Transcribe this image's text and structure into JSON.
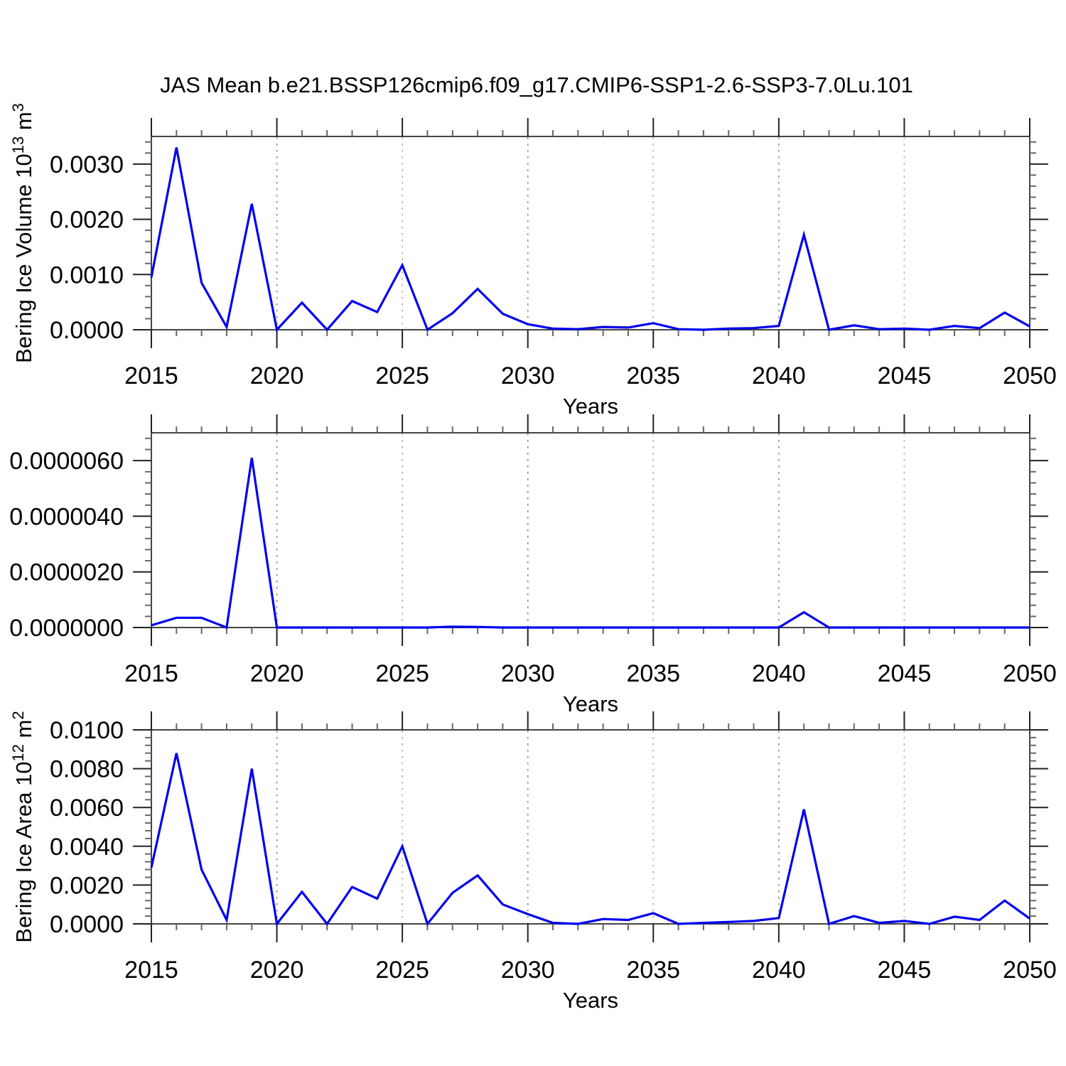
{
  "title": "JAS Mean b.e21.BSSP126cmip6.f09_g17.CMIP6-SSP1-2.6-SSP3-7.0Lu.101",
  "x_axis": {
    "label": "Years",
    "tick_labels": [
      "2015",
      "2020",
      "2025",
      "2030",
      "2035",
      "2040",
      "2045",
      "2050"
    ],
    "range": [
      2015,
      2050
    ],
    "major_step": 5,
    "minor_step": 1,
    "gridline_years": [
      2020,
      2025,
      2030,
      2035,
      2040,
      2045
    ]
  },
  "colors": {
    "series_line": "#0000f0",
    "axis_box": "#444444",
    "major_tick": "#222222",
    "minor_tick": "#666666",
    "grid_dark": "#909090",
    "grid_light": "#b4b4b4",
    "text": "#000000",
    "background": "#ffffff"
  },
  "chart_data": [
    {
      "type": "line",
      "name": "bering-ice-volume",
      "ylabel": "Bering Ice Volume 10^13 m^3",
      "ylabel_parts": [
        {
          "t": "Bering Ice Volume 10"
        },
        {
          "t": "13",
          "sup": true
        },
        {
          "t": " m"
        },
        {
          "t": "3",
          "sup": true
        }
      ],
      "xlabel": "Years",
      "ylim": [
        0,
        0.0035
      ],
      "yminor_step": 0.0002,
      "grid": "vertical-dashed",
      "legend": "none",
      "yticks": [
        {
          "v": 0.0,
          "label": "0.0000"
        },
        {
          "v": 0.001,
          "label": "0.0010"
        },
        {
          "v": 0.002,
          "label": "0.0020"
        },
        {
          "v": 0.003,
          "label": "0.0030"
        }
      ],
      "x": [
        2015,
        2016,
        2017,
        2018,
        2019,
        2020,
        2021,
        2022,
        2023,
        2024,
        2025,
        2026,
        2027,
        2028,
        2029,
        2030,
        2031,
        2032,
        2033,
        2034,
        2035,
        2036,
        2037,
        2038,
        2039,
        2040,
        2041,
        2042,
        2043,
        2044,
        2045,
        2046,
        2047,
        2048,
        2049,
        2050
      ],
      "values": [
        0.00095,
        0.0033,
        0.00085,
        5e-05,
        0.00228,
        0.0,
        0.00049,
        0.0,
        0.00052,
        0.00032,
        0.00117,
        0.0,
        0.0003,
        0.00074,
        0.00029,
        0.0001,
        2e-05,
        1e-05,
        5e-05,
        4e-05,
        0.00012,
        1e-05,
        0.0,
        2e-05,
        3e-05,
        7e-05,
        0.00172,
        0.0,
        8e-05,
        1e-05,
        2e-05,
        0.0,
        7e-05,
        3e-05,
        0.00031,
        6e-05
      ]
    },
    {
      "type": "line",
      "name": "middle-series",
      "ylabel": "",
      "ylabel_parts": [],
      "xlabel": "Years",
      "ylim": [
        0,
        7e-06
      ],
      "yminor_step": 4e-07,
      "grid": "vertical-dashed",
      "legend": "none",
      "yticks": [
        {
          "v": 0.0,
          "label": "0.0000000"
        },
        {
          "v": 2e-06,
          "label": "0.0000020"
        },
        {
          "v": 4e-06,
          "label": "0.0000040"
        },
        {
          "v": 6e-06,
          "label": "0.0000060"
        }
      ],
      "x": [
        2015,
        2016,
        2017,
        2018,
        2019,
        2020,
        2021,
        2022,
        2023,
        2024,
        2025,
        2026,
        2027,
        2028,
        2029,
        2030,
        2031,
        2032,
        2033,
        2034,
        2035,
        2036,
        2037,
        2038,
        2039,
        2040,
        2041,
        2042,
        2043,
        2044,
        2045,
        2046,
        2047,
        2048,
        2049,
        2050
      ],
      "values": [
        8e-08,
        3.5e-07,
        3.5e-07,
        0.0,
        6.1e-06,
        0.0,
        0.0,
        0.0,
        0.0,
        0.0,
        0.0,
        0.0,
        3e-08,
        2e-08,
        0.0,
        0.0,
        0.0,
        0.0,
        0.0,
        0.0,
        0.0,
        0.0,
        0.0,
        0.0,
        0.0,
        0.0,
        5.5e-07,
        0.0,
        0.0,
        0.0,
        0.0,
        0.0,
        0.0,
        0.0,
        0.0,
        0.0
      ]
    },
    {
      "type": "line",
      "name": "bering-ice-area",
      "ylabel": "Bering Ice Area 10^12 m^2",
      "ylabel_parts": [
        {
          "t": "Bering Ice Area 10"
        },
        {
          "t": "12",
          "sup": true
        },
        {
          "t": " m"
        },
        {
          "t": "2",
          "sup": true
        }
      ],
      "xlabel": "Years",
      "ylim": [
        0,
        0.01
      ],
      "yminor_step": 0.0004,
      "grid": "vertical-dashed",
      "legend": "none",
      "yticks": [
        {
          "v": 0.0,
          "label": "0.0000"
        },
        {
          "v": 0.002,
          "label": "0.0020"
        },
        {
          "v": 0.004,
          "label": "0.0040"
        },
        {
          "v": 0.006,
          "label": "0.0060"
        },
        {
          "v": 0.008,
          "label": "0.0080"
        },
        {
          "v": 0.01,
          "label": "0.0100"
        }
      ],
      "x": [
        2015,
        2016,
        2017,
        2018,
        2019,
        2020,
        2021,
        2022,
        2023,
        2024,
        2025,
        2026,
        2027,
        2028,
        2029,
        2030,
        2031,
        2032,
        2033,
        2034,
        2035,
        2036,
        2037,
        2038,
        2039,
        2040,
        2041,
        2042,
        2043,
        2044,
        2045,
        2046,
        2047,
        2048,
        2049,
        2050
      ],
      "values": [
        0.0029,
        0.0088,
        0.0028,
        0.0002,
        0.008,
        0.0,
        0.00165,
        0.0,
        0.0019,
        0.0013,
        0.004,
        0.0,
        0.0016,
        0.0025,
        0.001,
        0.0005,
        5e-05,
        0.0,
        0.00025,
        0.0002,
        0.00055,
        0.0,
        5e-05,
        0.0001,
        0.00015,
        0.0003,
        0.0059,
        0.0,
        0.0004,
        5e-05,
        0.00015,
        0.0,
        0.00037,
        0.0002,
        0.0012,
        0.00027
      ]
    }
  ]
}
